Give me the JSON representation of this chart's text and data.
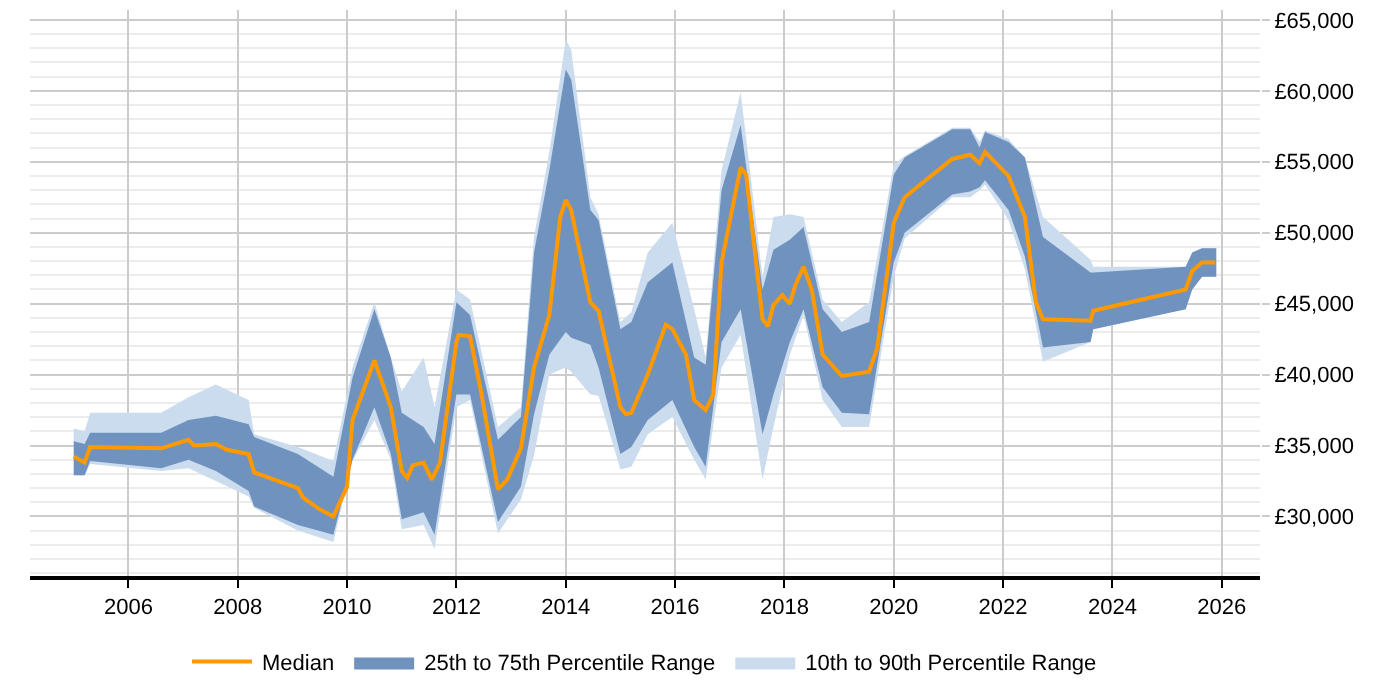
{
  "chart_data": {
    "type": "line",
    "xlim": [
      2004.2,
      2026.7
    ],
    "xticks": [
      2006,
      2008,
      2010,
      2012,
      2014,
      2016,
      2018,
      2020,
      2022,
      2024,
      2026
    ],
    "ylim": [
      25800,
      65700
    ],
    "yticks": [
      {
        "value": 26000,
        "label": null
      },
      {
        "value": 27000,
        "label": null
      },
      {
        "value": 28000,
        "label": null
      },
      {
        "value": 29000,
        "label": null
      },
      {
        "value": 30000,
        "label": "£30,000"
      },
      {
        "value": 31000,
        "label": null
      },
      {
        "value": 32000,
        "label": null
      },
      {
        "value": 33000,
        "label": null
      },
      {
        "value": 34000,
        "label": null
      },
      {
        "value": 35000,
        "label": "£35,000"
      },
      {
        "value": 36000,
        "label": null
      },
      {
        "value": 37000,
        "label": null
      },
      {
        "value": 38000,
        "label": null
      },
      {
        "value": 39000,
        "label": null
      },
      {
        "value": 40000,
        "label": "£40,000"
      },
      {
        "value": 41000,
        "label": null
      },
      {
        "value": 42000,
        "label": null
      },
      {
        "value": 43000,
        "label": null
      },
      {
        "value": 44000,
        "label": null
      },
      {
        "value": 45000,
        "label": "£45,000"
      },
      {
        "value": 46000,
        "label": null
      },
      {
        "value": 47000,
        "label": null
      },
      {
        "value": 48000,
        "label": null
      },
      {
        "value": 49000,
        "label": null
      },
      {
        "value": 50000,
        "label": "£50,000"
      },
      {
        "value": 51000,
        "label": null
      },
      {
        "value": 52000,
        "label": null
      },
      {
        "value": 53000,
        "label": null
      },
      {
        "value": 54000,
        "label": null
      },
      {
        "value": 55000,
        "label": "£55,000"
      },
      {
        "value": 56000,
        "label": null
      },
      {
        "value": 57000,
        "label": null
      },
      {
        "value": 58000,
        "label": null
      },
      {
        "value": 59000,
        "label": null
      },
      {
        "value": 60000,
        "label": "£60,000"
      },
      {
        "value": 61000,
        "label": null
      },
      {
        "value": 62000,
        "label": null
      },
      {
        "value": 63000,
        "label": null
      },
      {
        "value": 64000,
        "label": null
      },
      {
        "value": 65000,
        "label": "£65,000"
      }
    ],
    "grid": true,
    "legend": "bottom",
    "series": [
      {
        "name": "10th to 90th Percentile Range",
        "type": "area",
        "color": "#cbdcee",
        "x": [
          2005.0,
          2005.2,
          2005.3,
          2006.6,
          2007.1,
          2007.6,
          2008.2,
          2008.3,
          2009.1,
          2009.75,
          2010.1,
          2010.5,
          2010.8,
          2011.0,
          2011.4,
          2011.6,
          2012.0,
          2012.25,
          2012.76,
          2013.18,
          2013.42,
          2013.7,
          2014.0,
          2014.1,
          2014.45,
          2014.6,
          2015.0,
          2015.2,
          2015.5,
          2015.95,
          2016.35,
          2016.56,
          2016.85,
          2017.2,
          2017.6,
          2017.8,
          2018.1,
          2018.35,
          2018.7,
          2019.05,
          2019.55,
          2020.0,
          2020.2,
          2021.07,
          2021.4,
          2021.57,
          2021.67,
          2022.1,
          2022.4,
          2022.73,
          2023.6,
          2023.65,
          2025.34,
          2025.46,
          2025.64,
          2025.9
        ],
        "lower": [
          32900,
          32900,
          33700,
          33200,
          33400,
          32500,
          31400,
          30600,
          29000,
          28200,
          33900,
          36800,
          34000,
          29100,
          29400,
          27700,
          37700,
          38200,
          28800,
          31200,
          34300,
          40000,
          40500,
          40200,
          38600,
          38500,
          33300,
          33500,
          35800,
          37000,
          34000,
          32600,
          40500,
          42800,
          32600,
          36300,
          41400,
          44200,
          38200,
          36300,
          36300,
          46900,
          49600,
          52500,
          52500,
          53000,
          53400,
          50900,
          47400,
          40900,
          42300,
          43200,
          44600,
          46000,
          46900,
          46900
        ],
        "values": [
          null,
          null,
          null,
          null,
          null,
          null,
          null,
          null,
          null,
          null,
          null,
          null,
          null,
          null,
          null,
          null,
          null,
          null,
          null,
          null,
          null,
          null,
          null,
          null,
          null,
          null,
          null,
          null,
          null,
          null,
          null,
          null,
          null,
          null,
          null,
          null,
          null,
          null,
          null,
          null,
          null,
          null,
          null,
          null,
          null,
          null,
          null,
          null,
          null,
          null,
          null,
          null,
          null,
          null,
          null,
          null
        ],
        "upper": [
          36200,
          36000,
          37300,
          37300,
          38400,
          39300,
          38200,
          35800,
          34900,
          33900,
          40500,
          45100,
          41200,
          38800,
          41200,
          37700,
          46000,
          45300,
          36300,
          37700,
          49700,
          55700,
          63600,
          62900,
          52500,
          51300,
          43700,
          44400,
          48600,
          50700,
          44600,
          41200,
          54400,
          59900,
          46900,
          51100,
          51300,
          51100,
          45300,
          43700,
          45100,
          54800,
          55400,
          57400,
          57400,
          56400,
          57200,
          56600,
          55300,
          51100,
          48100,
          47600,
          47600,
          48600,
          48900,
          48900
        ]
      },
      {
        "name": "25th to 75th Percentile Range",
        "type": "area",
        "color": "#7092be",
        "x": [
          2005.0,
          2005.2,
          2005.3,
          2006.6,
          2007.1,
          2007.6,
          2008.2,
          2008.3,
          2009.1,
          2009.75,
          2010.1,
          2010.5,
          2010.8,
          2011.0,
          2011.4,
          2011.6,
          2012.0,
          2012.25,
          2012.76,
          2013.18,
          2013.42,
          2013.7,
          2014.0,
          2014.1,
          2014.45,
          2014.6,
          2015.0,
          2015.2,
          2015.5,
          2015.95,
          2016.35,
          2016.56,
          2016.85,
          2017.2,
          2017.6,
          2017.8,
          2018.1,
          2018.35,
          2018.7,
          2019.05,
          2019.55,
          2020.0,
          2020.2,
          2021.07,
          2021.4,
          2021.57,
          2021.67,
          2022.1,
          2022.4,
          2022.73,
          2023.6,
          2023.65,
          2025.34,
          2025.46,
          2025.64,
          2025.9
        ],
        "lower": [
          32900,
          32900,
          33900,
          33400,
          34000,
          33200,
          31800,
          30700,
          29400,
          28700,
          34000,
          37700,
          34400,
          29800,
          30300,
          28700,
          38600,
          38600,
          29600,
          32100,
          37200,
          41400,
          43000,
          42600,
          42100,
          40500,
          34400,
          34900,
          36800,
          38200,
          34900,
          33500,
          42300,
          44600,
          35800,
          38600,
          42300,
          44600,
          39100,
          37300,
          37200,
          47900,
          50000,
          52700,
          52900,
          53200,
          53700,
          51600,
          48300,
          41900,
          42300,
          43200,
          44600,
          46000,
          46900,
          46900
        ],
        "values": [
          null,
          null,
          null,
          null,
          null,
          null,
          null,
          null,
          null,
          null,
          null,
          null,
          null,
          null,
          null,
          null,
          null,
          null,
          null,
          null,
          null,
          null,
          null,
          null,
          null,
          null,
          null,
          null,
          null,
          null,
          null,
          null,
          null,
          null,
          null,
          null,
          null,
          null,
          null,
          null,
          null,
          null,
          null,
          null,
          null,
          null,
          null,
          null,
          null,
          null,
          null,
          null,
          null,
          null,
          null,
          null
        ],
        "upper": [
          35300,
          35100,
          35900,
          35900,
          36800,
          37100,
          36500,
          35600,
          34400,
          32800,
          39800,
          44600,
          41200,
          37300,
          36300,
          35100,
          45100,
          44200,
          35400,
          37000,
          48600,
          54400,
          61500,
          60800,
          51600,
          50900,
          43200,
          43700,
          46500,
          47900,
          41200,
          40700,
          53000,
          57600,
          46000,
          48800,
          49500,
          50400,
          44600,
          43000,
          43700,
          54100,
          55300,
          57300,
          57300,
          56000,
          57100,
          56400,
          55300,
          49700,
          47200,
          47200,
          47600,
          48600,
          48900,
          48900
        ]
      },
      {
        "name": "Median",
        "color": "#ff9900",
        "x": [
          2005.0,
          2005.2,
          2005.3,
          2006.6,
          2007.1,
          2007.2,
          2007.6,
          2007.8,
          2008.2,
          2008.3,
          2009.1,
          2009.2,
          2009.5,
          2009.75,
          2010.0,
          2010.1,
          2010.5,
          2010.8,
          2011.0,
          2011.1,
          2011.2,
          2011.4,
          2011.55,
          2011.7,
          2012.0,
          2012.04,
          2012.25,
          2012.46,
          2012.76,
          2012.93,
          2013.18,
          2013.42,
          2013.7,
          2013.9,
          2014.0,
          2014.1,
          2014.45,
          2014.6,
          2015.0,
          2015.1,
          2015.2,
          2015.5,
          2015.83,
          2015.95,
          2016.2,
          2016.35,
          2016.56,
          2016.7,
          2016.85,
          2017.2,
          2017.3,
          2017.6,
          2017.7,
          2017.8,
          2017.96,
          2018.1,
          2018.2,
          2018.35,
          2018.5,
          2018.7,
          2019.05,
          2019.55,
          2019.7,
          2020.0,
          2020.2,
          2021.07,
          2021.4,
          2021.57,
          2021.67,
          2022.1,
          2022.4,
          2022.6,
          2022.73,
          2023.6,
          2023.65,
          2025.34,
          2025.46,
          2025.64,
          2025.88
        ],
        "values": [
          34200,
          33800,
          34900,
          34800,
          35400,
          35000,
          35100,
          34700,
          34400,
          33100,
          32000,
          31300,
          30500,
          30000,
          32100,
          36800,
          41000,
          37700,
          33200,
          32700,
          33600,
          33800,
          32600,
          33800,
          42300,
          42800,
          42700,
          38600,
          31900,
          32600,
          34800,
          40500,
          44200,
          51100,
          52300,
          51600,
          45100,
          44500,
          37700,
          37200,
          37300,
          40000,
          43500,
          43200,
          41400,
          38200,
          37500,
          38600,
          47900,
          54600,
          54100,
          43900,
          43400,
          44900,
          45600,
          45000,
          46300,
          47600,
          46000,
          41400,
          39900,
          40200,
          41900,
          50700,
          52500,
          55200,
          55500,
          54900,
          55700,
          54000,
          51100,
          45100,
          43900,
          43800,
          44500,
          46000,
          47300,
          47900,
          47900
        ]
      }
    ]
  }
}
